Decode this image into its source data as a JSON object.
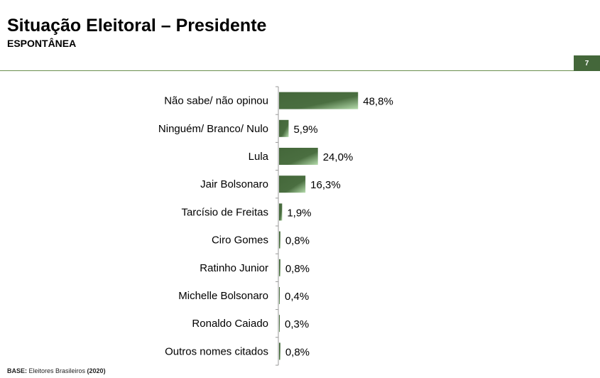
{
  "header": {
    "title": "Situação Eleitoral – Presidente",
    "subtitle": "ESPONTÂNEA",
    "page_number": "7"
  },
  "footer": {
    "base_label": "BASE:",
    "base_text": " Eleitores Brasileiros ",
    "base_year": "(2020)"
  },
  "colors": {
    "bar": "#44673a",
    "bar_light": "#a9d3a0"
  },
  "chart_data": {
    "type": "bar",
    "orientation": "horizontal",
    "title": "",
    "xlabel": "",
    "ylabel": "",
    "xlim": [
      0,
      60
    ],
    "categories": [
      "Não sabe/ não opinou",
      "Ninguém/ Branco/ Nulo",
      "Lula",
      "Jair Bolsonaro",
      "Tarcísio de Freitas",
      "Ciro Gomes",
      "Ratinho Junior",
      "Michelle Bolsonaro",
      "Ronaldo Caiado",
      "Outros nomes citados"
    ],
    "values": [
      48.8,
      5.9,
      24.0,
      16.3,
      1.9,
      0.8,
      0.8,
      0.4,
      0.3,
      0.8
    ],
    "labels": [
      "48,8%",
      "5,9%",
      "24,0%",
      "16,3%",
      "1,9%",
      "0,8%",
      "0,8%",
      "0,4%",
      "0,3%",
      "0,8%"
    ]
  }
}
